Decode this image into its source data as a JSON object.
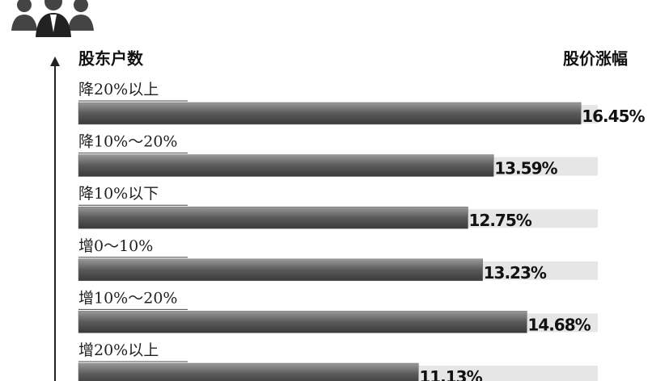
{
  "chart_data": {
    "type": "hbar",
    "y_axis_label": "股东户数",
    "x_axis_label": "股价涨幅",
    "categories": [
      "降20%以上",
      "降10%～20%",
      "降10%以下",
      "增0～10%",
      "增10%～20%",
      "增20%以上"
    ],
    "values": [
      16.45,
      13.59,
      12.75,
      13.23,
      14.68,
      11.13
    ],
    "value_labels": [
      "16.45%",
      "13.59%",
      "12.75%",
      "13.23%",
      "14.68%",
      "11.13%"
    ],
    "color": "#6a6a6a",
    "xlim": [
      0,
      17
    ]
  }
}
